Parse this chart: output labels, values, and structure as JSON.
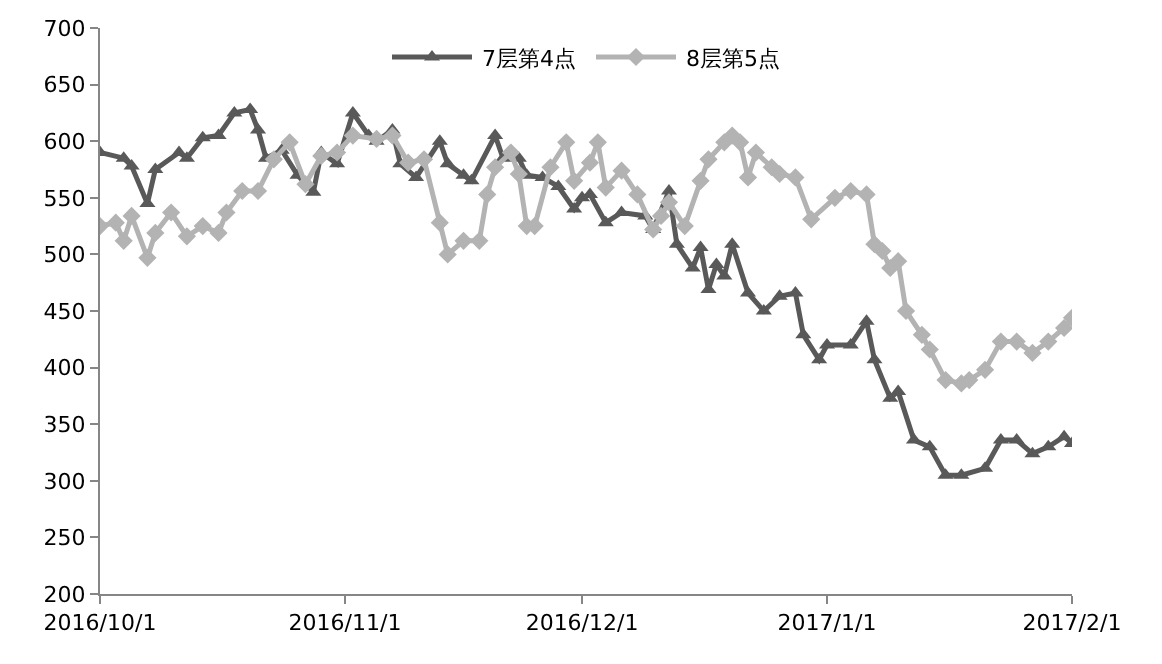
{
  "chart_data": {
    "type": "line",
    "legend": "top",
    "xlim": [
      "2016-10-01",
      "2017-02-01"
    ],
    "xticks": [
      {
        "value": "2016-10-01",
        "label": "2016/10/1"
      },
      {
        "value": "2016-11-01",
        "label": "2016/11/1"
      },
      {
        "value": "2016-12-01",
        "label": "2016/12/1"
      },
      {
        "value": "2017-01-01",
        "label": "2017/1/1"
      },
      {
        "value": "2017-02-01",
        "label": "2017/2/1"
      }
    ],
    "ylim": [
      200,
      700
    ],
    "yticks": [
      200,
      250,
      300,
      350,
      400,
      450,
      500,
      550,
      600,
      650,
      700
    ],
    "series": [
      {
        "name": "7层第4点",
        "color": "#595959",
        "marker": "triangle",
        "x": [
          "2016-10-01",
          "2016-10-04",
          "2016-10-05",
          "2016-10-07",
          "2016-10-08",
          "2016-10-11",
          "2016-10-12",
          "2016-10-14",
          "2016-10-16",
          "2016-10-18",
          "2016-10-20",
          "2016-10-21",
          "2016-10-22",
          "2016-10-24",
          "2016-10-26",
          "2016-10-28",
          "2016-10-29",
          "2016-10-31",
          "2016-11-02",
          "2016-11-04",
          "2016-11-05",
          "2016-11-07",
          "2016-11-08",
          "2016-11-10",
          "2016-11-13",
          "2016-11-14",
          "2016-11-16",
          "2016-11-17",
          "2016-11-20",
          "2016-11-21",
          "2016-11-23",
          "2016-11-24",
          "2016-11-26",
          "2016-11-28",
          "2016-11-30",
          "2016-12-01",
          "2016-12-02",
          "2016-12-04",
          "2016-12-06",
          "2016-12-09",
          "2016-12-10",
          "2016-12-12",
          "2016-12-13",
          "2016-12-15",
          "2016-12-16",
          "2016-12-17",
          "2016-12-18",
          "2016-12-19",
          "2016-12-20",
          "2016-12-22",
          "2016-12-24",
          "2016-12-26",
          "2016-12-28",
          "2016-12-29",
          "2016-12-31",
          "2017-01-01",
          "2017-01-04",
          "2017-01-06",
          "2017-01-07",
          "2017-01-09",
          "2017-01-10",
          "2017-01-12",
          "2017-01-14",
          "2017-01-16",
          "2017-01-18",
          "2017-01-21",
          "2017-01-23",
          "2017-01-25",
          "2017-01-27",
          "2017-01-29",
          "2017-01-31",
          "2017-02-01"
        ],
        "values": [
          590,
          585,
          578,
          545,
          575,
          590,
          585,
          603,
          605,
          625,
          628,
          610,
          585,
          592,
          570,
          555,
          590,
          580,
          625,
          605,
          600,
          610,
          580,
          568,
          600,
          580,
          570,
          565,
          605,
          585,
          585,
          570,
          568,
          560,
          540,
          550,
          553,
          528,
          537,
          534,
          522,
          556,
          509,
          488,
          506,
          469,
          491,
          481,
          509,
          466,
          450,
          463,
          466,
          429,
          407,
          420,
          420,
          441,
          407,
          373,
          379,
          336,
          330,
          305,
          305,
          311,
          336,
          336,
          324,
          330,
          339,
          333
        ]
      },
      {
        "name": "8层第5点",
        "color": "#b3b3b3",
        "marker": "diamond",
        "x": [
          "2016-10-01",
          "2016-10-03",
          "2016-10-04",
          "2016-10-05",
          "2016-10-07",
          "2016-10-08",
          "2016-10-10",
          "2016-10-12",
          "2016-10-14",
          "2016-10-16",
          "2016-10-17",
          "2016-10-19",
          "2016-10-21",
          "2016-10-23",
          "2016-10-25",
          "2016-10-27",
          "2016-10-29",
          "2016-10-31",
          "2016-11-02",
          "2016-11-05",
          "2016-11-07",
          "2016-11-09",
          "2016-11-11",
          "2016-11-13",
          "2016-11-14",
          "2016-11-16",
          "2016-11-18",
          "2016-11-19",
          "2016-11-20",
          "2016-11-22",
          "2016-11-23",
          "2016-11-24",
          "2016-11-25",
          "2016-11-27",
          "2016-11-29",
          "2016-11-30",
          "2016-12-02",
          "2016-12-03",
          "2016-12-04",
          "2016-12-06",
          "2016-12-08",
          "2016-12-10",
          "2016-12-11",
          "2016-12-12",
          "2016-12-14",
          "2016-12-16",
          "2016-12-17",
          "2016-12-19",
          "2016-12-20",
          "2016-12-21",
          "2016-12-22",
          "2016-12-23",
          "2016-12-25",
          "2016-12-26",
          "2016-12-28",
          "2016-12-30",
          "2017-01-02",
          "2017-01-04",
          "2017-01-06",
          "2017-01-07",
          "2017-01-08",
          "2017-01-09",
          "2017-01-10",
          "2017-01-11",
          "2017-01-13",
          "2017-01-14",
          "2017-01-16",
          "2017-01-18",
          "2017-01-19",
          "2017-01-21",
          "2017-01-23",
          "2017-01-25",
          "2017-01-27",
          "2017-01-29",
          "2017-01-31",
          "2017-02-01"
        ],
        "values": [
          525,
          528,
          512,
          534,
          497,
          519,
          537,
          516,
          525,
          519,
          537,
          556,
          556,
          584,
          599,
          562,
          587,
          590,
          605,
          602,
          605,
          581,
          584,
          528,
          500,
          512,
          512,
          553,
          577,
          590,
          571,
          525,
          525,
          577,
          599,
          565,
          581,
          599,
          559,
          574,
          553,
          522,
          534,
          546,
          525,
          565,
          584,
          599,
          605,
          599,
          568,
          590,
          577,
          571,
          568,
          531,
          550,
          556,
          553,
          509,
          503,
          488,
          494,
          450,
          429,
          416,
          389,
          386,
          389,
          398,
          423,
          423,
          413,
          423,
          435,
          444
        ]
      }
    ]
  }
}
